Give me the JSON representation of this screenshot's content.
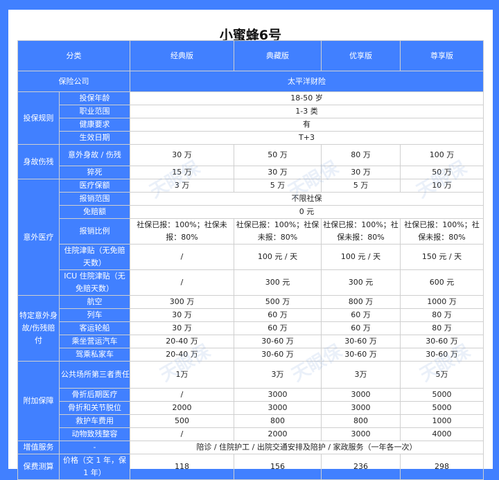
{
  "title": "小蜜蜂6号",
  "watermark": "天眼保",
  "header": {
    "category": "分类",
    "plans": [
      "经典版",
      "典藏版",
      "优享版",
      "尊享版"
    ]
  },
  "company": {
    "label": "保险公司",
    "value": "太平洋财险"
  },
  "sections": [
    {
      "group": "投保规则",
      "items": [
        {
          "label": "投保年龄",
          "values": [
            "18-50 岁"
          ]
        },
        {
          "label": "职业范围",
          "values": [
            "1-3 类"
          ]
        },
        {
          "label": "健康要求",
          "values": [
            "有"
          ]
        },
        {
          "label": "生效日期",
          "values": [
            "T+3"
          ]
        }
      ]
    },
    {
      "group": "身故伤残",
      "items": [
        {
          "label": "意外身故 / 伤残",
          "values": [
            "30 万",
            "50 万",
            "80 万",
            "100 万"
          ]
        },
        {
          "label": "猝死",
          "values": [
            "15 万",
            "30 万",
            "30 万",
            "50 万"
          ]
        }
      ]
    },
    {
      "group": "意外医疗",
      "items": [
        {
          "label": "医疗保额",
          "values": [
            "3 万",
            "5 万",
            "5 万",
            "10 万"
          ]
        },
        {
          "label": "报销范围",
          "values": [
            "不限社保"
          ]
        },
        {
          "label": "免赔额",
          "values": [
            "0 元"
          ]
        },
        {
          "label": "报销比例",
          "values": [
            "社保已报：100%；社保未报：80%",
            "社保已报：100%；社保未报：80%",
            "社保已报：100%；社保未报：80%",
            "社保已报：100%；社保未报：80%"
          ]
        },
        {
          "label": "住院津贴（无免赔天数）",
          "values": [
            "/",
            "100 元 / 天",
            "100 元 / 天",
            "150 元 / 天"
          ]
        },
        {
          "label": "ICU 住院津贴（无免赔天数）",
          "values": [
            "/",
            "300 元",
            "300 元",
            "600 元"
          ]
        }
      ]
    },
    {
      "group": "特定意外身故/伤残赔付",
      "items": [
        {
          "label": "航空",
          "values": [
            "300 万",
            "500 万",
            "800 万",
            "1000 万"
          ]
        },
        {
          "label": "列车",
          "values": [
            "30 万",
            "60 万",
            "60 万",
            "80 万"
          ]
        },
        {
          "label": "客运轮船",
          "values": [
            "30 万",
            "60 万",
            "60 万",
            "80 万"
          ]
        },
        {
          "label": "乘坐营运汽车",
          "values": [
            "20-40 万",
            "30-60 万",
            "30-60 万",
            "30-60 万"
          ]
        },
        {
          "label": "驾乘私家车",
          "values": [
            "20-40 万",
            "30-60 万",
            "30-60 万",
            "30-60 万"
          ]
        }
      ]
    },
    {
      "group": "附加保障",
      "items": [
        {
          "label": "公共场所第三者责任险",
          "values": [
            "1万",
            "3万",
            "3万",
            "5万"
          ]
        },
        {
          "label": "骨折后期医疗",
          "values": [
            "/",
            "3000",
            "3000",
            "5000"
          ]
        },
        {
          "label": "骨折和关节脱位",
          "values": [
            "2000",
            "3000",
            "3000",
            "5000"
          ]
        },
        {
          "label": "救护车费用",
          "values": [
            "500",
            "800",
            "800",
            "1000"
          ]
        },
        {
          "label": "动物致残整容",
          "values": [
            "/",
            "2000",
            "3000",
            "4000"
          ]
        }
      ]
    },
    {
      "group": "增值服务",
      "items": [
        {
          "label": "-",
          "values": [
            "陪诊 / 住院护工 / 出院交通安排及陪护 / 家政服务（一年各一次）"
          ]
        }
      ]
    },
    {
      "group": "保费测算",
      "items": [
        {
          "label": "价格（交 1 年，保 1 年）",
          "values": [
            "118",
            "156",
            "236",
            "298"
          ]
        }
      ]
    }
  ]
}
